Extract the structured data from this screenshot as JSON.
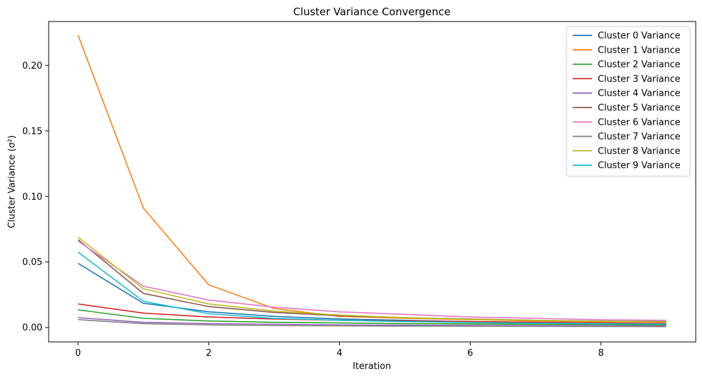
{
  "chart_data": {
    "type": "line",
    "title": "Cluster Variance Convergence",
    "xlabel": "Iteration",
    "ylabel": "Cluster Variance (σ²)",
    "xlim": [
      -0.45,
      9.45
    ],
    "ylim": [
      -0.011,
      0.2335
    ],
    "xticks": [
      0,
      2,
      4,
      6,
      8
    ],
    "xtick_labels": [
      "0",
      "2",
      "4",
      "6",
      "8"
    ],
    "yticks": [
      0.0,
      0.05,
      0.1,
      0.15,
      0.2
    ],
    "ytick_labels": [
      "0.00",
      "0.05",
      "0.10",
      "0.15",
      "0.20"
    ],
    "grid": false,
    "legend_position": "top-right",
    "x": [
      0,
      1,
      2,
      3,
      4,
      5,
      6,
      7,
      8,
      9
    ],
    "series": [
      {
        "name": "Cluster 0 Variance",
        "color": "#1f77b4",
        "values": [
          0.049,
          0.0185,
          0.012,
          0.0085,
          0.0065,
          0.0055,
          0.0045,
          0.004,
          0.0035,
          0.003
        ]
      },
      {
        "name": "Cluster 1 Variance",
        "color": "#ff7f0e",
        "values": [
          0.223,
          0.091,
          0.0325,
          0.0145,
          0.0085,
          0.007,
          0.006,
          0.005,
          0.0045,
          0.004
        ]
      },
      {
        "name": "Cluster 2 Variance",
        "color": "#2ca02c",
        "values": [
          0.0135,
          0.007,
          0.005,
          0.004,
          0.0035,
          0.003,
          0.0027,
          0.0025,
          0.0023,
          0.002
        ]
      },
      {
        "name": "Cluster 3 Variance",
        "color": "#d62728",
        "values": [
          0.018,
          0.011,
          0.008,
          0.0065,
          0.0055,
          0.005,
          0.0045,
          0.004,
          0.0035,
          0.003
        ]
      },
      {
        "name": "Cluster 4 Variance",
        "color": "#9467bd",
        "values": [
          0.0075,
          0.004,
          0.003,
          0.0025,
          0.002,
          0.0018,
          0.0016,
          0.0015,
          0.0014,
          0.0013
        ]
      },
      {
        "name": "Cluster 5 Variance",
        "color": "#8c564b",
        "values": [
          0.067,
          0.026,
          0.016,
          0.0115,
          0.009,
          0.0075,
          0.0065,
          0.0055,
          0.005,
          0.0045
        ]
      },
      {
        "name": "Cluster 6 Variance",
        "color": "#e377c2",
        "values": [
          0.066,
          0.0315,
          0.021,
          0.0155,
          0.012,
          0.01,
          0.008,
          0.007,
          0.006,
          0.0055
        ]
      },
      {
        "name": "Cluster 7 Variance",
        "color": "#7f7f7f",
        "values": [
          0.006,
          0.003,
          0.002,
          0.0015,
          0.0013,
          0.0011,
          0.001,
          0.0009,
          0.0008,
          0.0007
        ]
      },
      {
        "name": "Cluster 8 Variance",
        "color": "#bcbd22",
        "values": [
          0.069,
          0.0295,
          0.018,
          0.0125,
          0.0095,
          0.0075,
          0.0063,
          0.0055,
          0.0048,
          0.0042
        ]
      },
      {
        "name": "Cluster 9 Variance",
        "color": "#17becf",
        "values": [
          0.0575,
          0.02,
          0.0105,
          0.007,
          0.0055,
          0.0045,
          0.0038,
          0.0033,
          0.0029,
          0.0026
        ]
      }
    ]
  }
}
